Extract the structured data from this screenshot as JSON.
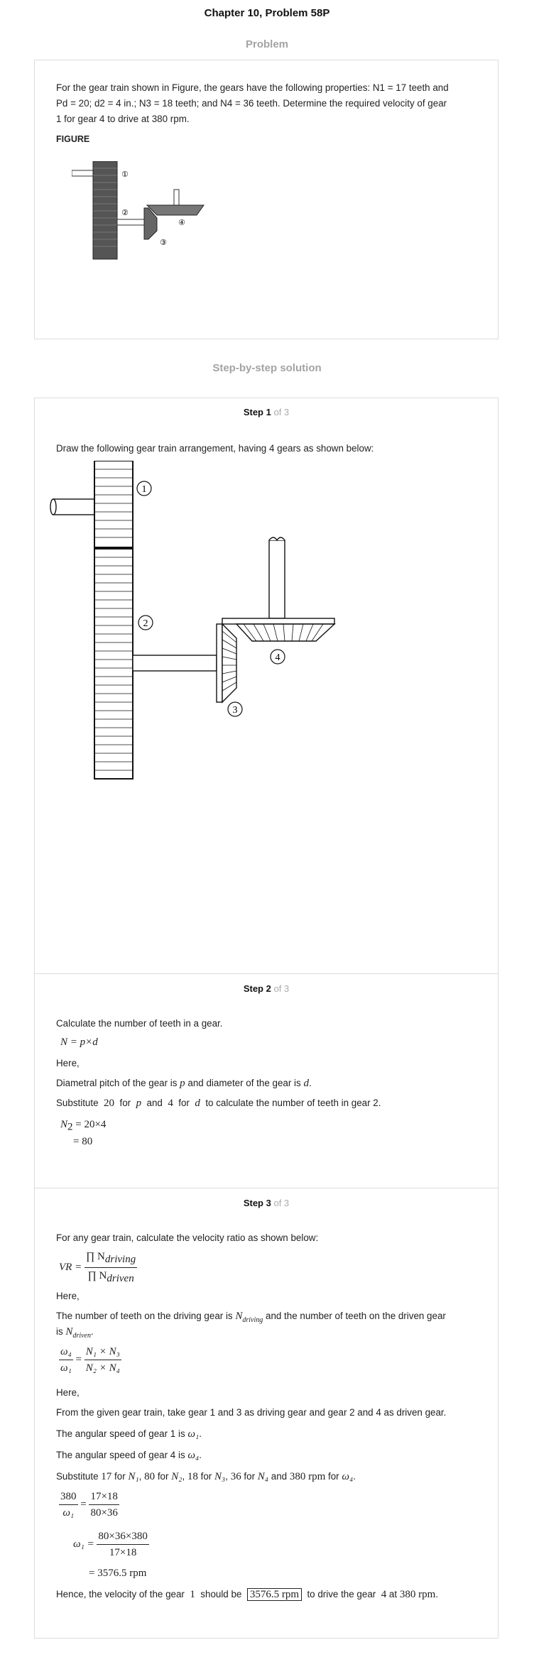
{
  "page": {
    "title": "Chapter 10, Problem 58P",
    "problem_heading": "Problem",
    "solution_heading": "Step-by-step solution"
  },
  "problem": {
    "text_line1": "For the gear train shown in Figure, the gears have the following properties: N1 = 17 teeth and",
    "text_line2": "Pd = 20; d2 = 4 in.; N3 = 18 teeth; and N4 = 36 teeth. Determine the required velocity of gear",
    "text_line3": "1 for gear 4 to drive at 380 rpm.",
    "figure_label": "FIGURE",
    "gear_labels": [
      "①",
      "②",
      "③",
      "④"
    ]
  },
  "step1": {
    "label": "Step 1",
    "of": "of 3",
    "text": "Draw the following gear train arrangement, having 4 gears as shown below:",
    "gear_labels": [
      "1",
      "2",
      "3",
      "4"
    ]
  },
  "step2": {
    "label": "Step 2",
    "of": "of 3",
    "t1": "Calculate the number of teeth in a gear.",
    "eq1": "N = p×d",
    "here": "Here,",
    "t2a": "Diametral pitch of the gear is",
    "t2b": "and diameter of the gear is",
    "sym_p": "p",
    "sym_d": "d",
    "t3a": "Substitute",
    "v20": "20",
    "t3for": "for",
    "t3and": "and",
    "v4": "4",
    "t3b": "to calculate the number of teeth in gear 2.",
    "eq2a": "N",
    "eq2sub": "2",
    "eq2b": "= 20×4",
    "eq3": "= 80"
  },
  "step3": {
    "label": "Step 3",
    "of": "of 3",
    "t1": "For any gear train, calculate the velocity ratio as shown below:",
    "vr": "VR =",
    "num": "∏ N",
    "num_sub": "driving",
    "den": "∏ N",
    "den_sub": "driven",
    "here": "Here,",
    "t2a": "The number of teeth on the driving gear is",
    "t2b": "and the number of teeth on the driven gear",
    "t2c": "is",
    "eq_l_num": "ω₄",
    "eq_l_den": "ω₁",
    "eq_r_num": "N₁ × N₃",
    "eq_r_den": "N₂ × N₄",
    "here2": "Here,",
    "t3": "From the given gear train, take gear 1 and 3 as driving gear and gear 2 and 4 as driven gear.",
    "t4a": "The angular speed of gear 1 is",
    "w1": "ω₁",
    "t5a": "The angular speed of gear 4 is",
    "w4": "ω₄",
    "t6a": "Substitute",
    "s17": "17",
    "s80": "80",
    "s18": "18",
    "s36": "36",
    "s380": "380 rpm",
    "sfor": "for",
    "sand": "and",
    "sN1": "N₁",
    "sN2": "N₂",
    "sN3": "N₃",
    "sN4": "N₄",
    "e1_l_num": "380",
    "e1_l_den": "ω₁",
    "e1_r_num": "17×18",
    "e1_r_den": "80×36",
    "e2_l": "ω₁ =",
    "e2_r_num": "80×36×380",
    "e2_r_den": "17×18",
    "e3": "= 3576.5 rpm",
    "final_a": "Hence, the velocity of the gear",
    "final_gear": "1",
    "final_b": "should be",
    "final_value": "3576.5 rpm",
    "final_c": "to drive the gear",
    "final_gear4": "4",
    "final_at": "at",
    "final_rpm": "380 rpm"
  }
}
